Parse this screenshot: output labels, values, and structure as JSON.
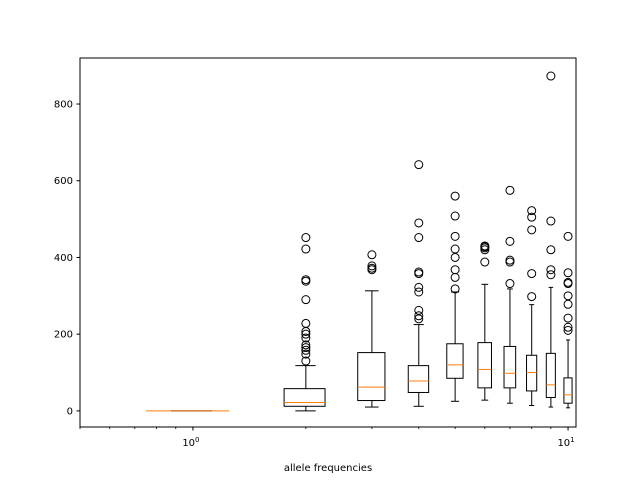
{
  "chart_data": {
    "type": "box",
    "xlabel": "allele frequencies",
    "ylabel": "",
    "xscale": "log",
    "xlim": [
      0.5,
      10.5
    ],
    "ylim": [
      -42,
      920
    ],
    "x_ticks": [
      {
        "value": 1,
        "label_base": "10",
        "label_exp": "0"
      },
      {
        "value": 10,
        "label_base": "10",
        "label_exp": "1"
      }
    ],
    "y_ticks": [
      0,
      200,
      400,
      600,
      800
    ],
    "box_color": "#000000",
    "median_color": "#ff7f0e",
    "boxes": [
      {
        "x": 1,
        "q1": 0,
        "median": 0,
        "q3": 0,
        "whisker_low": 0,
        "whisker_high": 0,
        "outliers": []
      },
      {
        "x": 2,
        "q1": 12,
        "median": 22,
        "q3": 58,
        "whisker_low": 0,
        "whisker_high": 118,
        "outliers": [
          130,
          148,
          158,
          165,
          172,
          190,
          200,
          207,
          228,
          290,
          338,
          342,
          422,
          452
        ]
      },
      {
        "x": 3,
        "q1": 27,
        "median": 62,
        "q3": 152,
        "whisker_low": 10,
        "whisker_high": 313,
        "outliers": [
          368,
          372,
          378,
          407
        ]
      },
      {
        "x": 4,
        "q1": 48,
        "median": 78,
        "q3": 118,
        "whisker_low": 12,
        "whisker_high": 225,
        "outliers": [
          240,
          248,
          262,
          310,
          322,
          358,
          362,
          452,
          490,
          642
        ]
      },
      {
        "x": 5,
        "q1": 85,
        "median": 120,
        "q3": 175,
        "whisker_low": 25,
        "whisker_high": 310,
        "outliers": [
          318,
          348,
          368,
          400,
          422,
          455,
          508,
          560
        ]
      },
      {
        "x": 6,
        "q1": 60,
        "median": 108,
        "q3": 178,
        "whisker_low": 28,
        "whisker_high": 330,
        "outliers": [
          388,
          420,
          425,
          428,
          430
        ]
      },
      {
        "x": 7,
        "q1": 60,
        "median": 98,
        "q3": 168,
        "whisker_low": 20,
        "whisker_high": 318,
        "outliers": [
          332,
          388,
          393,
          442,
          575
        ]
      },
      {
        "x": 8,
        "q1": 52,
        "median": 100,
        "q3": 145,
        "whisker_low": 14,
        "whisker_high": 277,
        "outliers": [
          298,
          358,
          472,
          505,
          522
        ]
      },
      {
        "x": 9,
        "q1": 35,
        "median": 68,
        "q3": 150,
        "whisker_low": 10,
        "whisker_high": 322,
        "outliers": [
          355,
          368,
          420,
          495,
          873
        ]
      },
      {
        "x": 10,
        "q1": 20,
        "median": 42,
        "q3": 86,
        "whisker_low": 8,
        "whisker_high": 185,
        "outliers": [
          210,
          218,
          242,
          278,
          300,
          332,
          335,
          360,
          455
        ]
      }
    ]
  }
}
